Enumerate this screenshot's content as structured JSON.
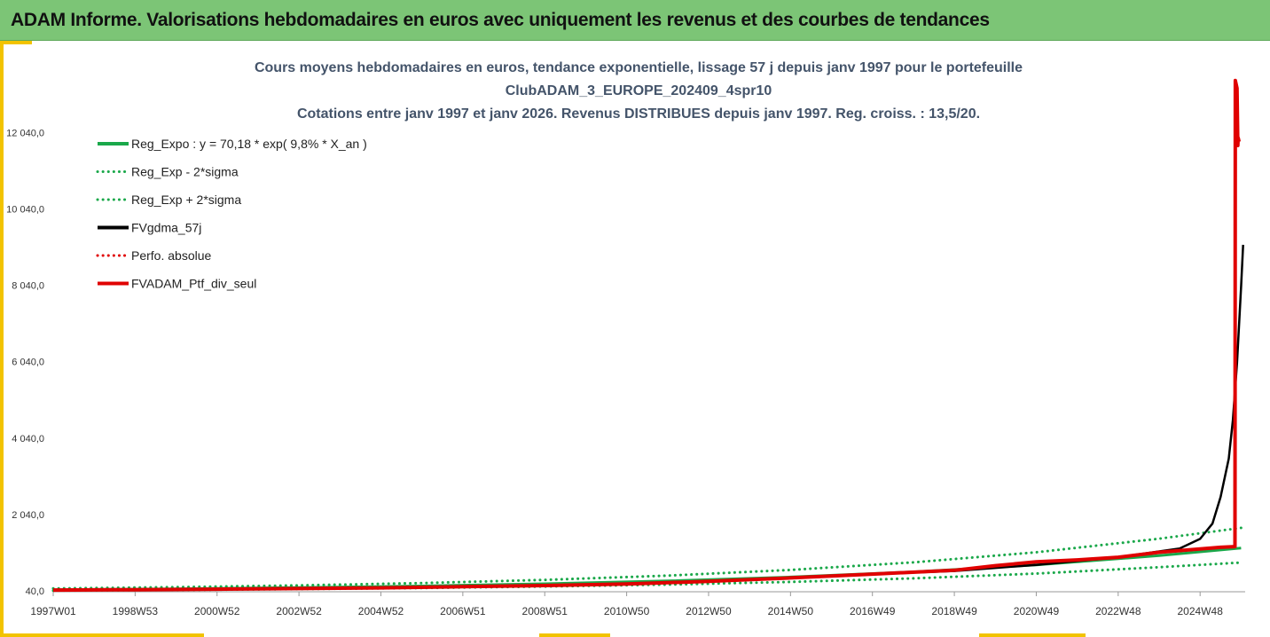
{
  "header": {
    "title": "ADAM Informe. Valorisations hebdomadaires en euros avec uniquement les revenus et des courbes de tendances"
  },
  "colors": {
    "header_bg": "#7cc576",
    "accent": "#f2c300",
    "green": "#1aa84a",
    "black": "#000000",
    "red": "#e00000"
  },
  "chart_data": {
    "type": "line",
    "title_lines": [
      "Cours moyens hebdomadaires  en euros, tendance exponentielle, lissage 57 j depuis janv 1997 pour le portefeuille",
      "ClubADAM_3_EUROPE_202409_4spr10",
      "Cotations entre janv 1997 et janv 2026. Revenus DISTRIBUES depuis janv 1997. Reg. croiss. : 13,5/20."
    ],
    "ylim": [
      40,
      13000
    ],
    "yticks": [
      40,
      2040,
      4040,
      6040,
      8040,
      10040,
      12040
    ],
    "ytick_labels": [
      "40,0",
      "2 040,0",
      "4 040,0",
      "6 040,0",
      "8 040,0",
      "10 040,0",
      "12 040,0"
    ],
    "xlim": [
      1997.0,
      2026.1
    ],
    "xticks": [
      1997.0,
      1999.0,
      2001.0,
      2003.0,
      2005.0,
      2007.0,
      2009.0,
      2011.0,
      2013.0,
      2015.0,
      2017.0,
      2019.0,
      2021.0,
      2023.0,
      2025.0
    ],
    "xtick_labels": [
      "1997W01",
      "1998W53",
      "2000W52",
      "2002W52",
      "2004W52",
      "2006W51",
      "2008W51",
      "2010W50",
      "2012W50",
      "2014W50",
      "2016W49",
      "2018W49",
      "2020W49",
      "2022W48",
      "2024W48"
    ],
    "legend": [
      {
        "label": "Reg_Expo : y = 70,18 * exp( 9,8% *  X_an )",
        "color": "#1aa84a",
        "style": "solid"
      },
      {
        "label": "Reg_Exp - 2*sigma",
        "color": "#1aa84a",
        "style": "dotted"
      },
      {
        "label": "Reg_Exp + 2*sigma",
        "color": "#1aa84a",
        "style": "dotted"
      },
      {
        "label": "FVgdma_57j",
        "color": "#000000",
        "style": "solid"
      },
      {
        "label": "Perfo. absolue",
        "color": "#e00000",
        "style": "dotted"
      },
      {
        "label": "FVADAM_Ptf_div_seul",
        "color": "#e00000",
        "style": "solid"
      }
    ],
    "series": [
      {
        "name": "Reg_Expo",
        "color": "#1aa84a",
        "style": "solid",
        "width": 3,
        "x": [
          1997,
          2000,
          2003,
          2006,
          2009,
          2012,
          2015,
          2018,
          2021,
          2024,
          2026
        ],
        "values": [
          70,
          94,
          126,
          168,
          225,
          301,
          402,
          538,
          720,
          963,
          1160
        ]
      },
      {
        "name": "Reg_Exp - 2*sigma",
        "color": "#1aa84a",
        "style": "dotted",
        "width": 3,
        "x": [
          1997,
          2000,
          2003,
          2006,
          2009,
          2012,
          2015,
          2018,
          2021,
          2024,
          2026
        ],
        "values": [
          48,
          64,
          86,
          115,
          154,
          206,
          275,
          368,
          493,
          660,
          780
        ]
      },
      {
        "name": "Reg_Exp + 2*sigma",
        "color": "#1aa84a",
        "style": "dotted",
        "width": 3,
        "x": [
          1997,
          2000,
          2003,
          2006,
          2009,
          2012,
          2015,
          2018,
          2021,
          2024,
          2026
        ],
        "values": [
          102,
          137,
          183,
          245,
          328,
          439,
          587,
          785,
          1051,
          1405,
          1690
        ]
      },
      {
        "name": "FVgdma_57j",
        "color": "#000000",
        "style": "solid",
        "width": 2.5,
        "x": [
          1997,
          1999,
          2001,
          2003,
          2005,
          2007,
          2009,
          2011,
          2013,
          2015,
          2017,
          2019,
          2021,
          2023,
          2024.5,
          2025.0,
          2025.3,
          2025.5,
          2025.7,
          2025.8,
          2025.9,
          2026.0,
          2026.05
        ],
        "values": [
          60,
          70,
          85,
          100,
          120,
          150,
          180,
          220,
          290,
          380,
          480,
          560,
          720,
          920,
          1150,
          1400,
          1800,
          2500,
          3500,
          4500,
          6000,
          8000,
          9100
        ]
      },
      {
        "name": "FVADAM_Ptf_div_seul",
        "color": "#e00000",
        "style": "solid",
        "width": 4,
        "x": [
          1997,
          1999,
          2001,
          2003,
          2005,
          2007,
          2009,
          2011,
          2013,
          2015,
          2017,
          2019,
          2020,
          2021,
          2022,
          2023,
          2024,
          2025.5,
          2025.85,
          2025.86,
          2025.9,
          2025.92,
          2025.93,
          2025.95
        ],
        "values": [
          60,
          70,
          85,
          100,
          120,
          150,
          180,
          220,
          290,
          380,
          480,
          580,
          700,
          800,
          850,
          920,
          1050,
          1180,
          1200,
          13400,
          13200,
          11700,
          11900,
          11800
        ]
      }
    ]
  }
}
